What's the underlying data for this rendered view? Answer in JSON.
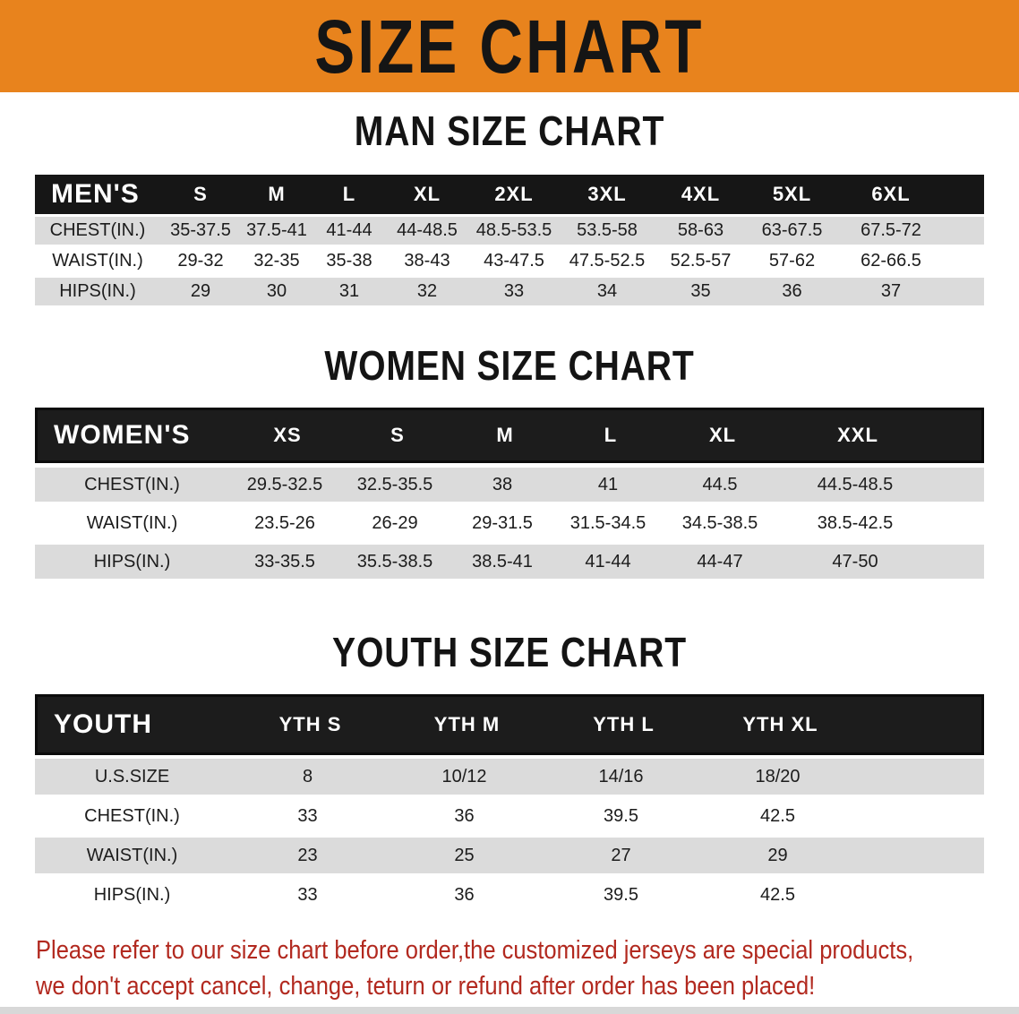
{
  "banner": {
    "title": "SIZE CHART",
    "bg_color": "#E8831D",
    "text_color": "#151515"
  },
  "colors": {
    "header_bar": "#161616",
    "row_gray": "#DBDBDB",
    "row_white": "#FFFFFF",
    "note_red": "#B2291F"
  },
  "sections": [
    {
      "id": "men",
      "title": "MAN SIZE CHART",
      "header_label": "MEN'S",
      "columns": [
        "S",
        "M",
        "L",
        "XL",
        "2XL",
        "3XL",
        "4XL",
        "5XL",
        "6XL"
      ],
      "rows": [
        {
          "label": "CHEST(IN.)",
          "shade": "gray",
          "values": [
            "35-37.5",
            "37.5-41",
            "41-44",
            "44-48.5",
            "48.5-53.5",
            "53.5-58",
            "58-63",
            "63-67.5",
            "67.5-72"
          ]
        },
        {
          "label": "WAIST(IN.)",
          "shade": "white",
          "values": [
            "29-32",
            "32-35",
            "35-38",
            "38-43",
            "43-47.5",
            "47.5-52.5",
            "52.5-57",
            "57-62",
            "62-66.5"
          ]
        },
        {
          "label": "HIPS(IN.)",
          "shade": "gray",
          "values": [
            "29",
            "30",
            "31",
            "32",
            "33",
            "34",
            "35",
            "36",
            "37"
          ]
        }
      ]
    },
    {
      "id": "women",
      "title": "WOMEN SIZE CHART",
      "header_label": "WOMEN'S",
      "columns": [
        "XS",
        "S",
        "M",
        "L",
        "XL",
        "XXL"
      ],
      "rows": [
        {
          "label": "CHEST(IN.)",
          "shade": "gray",
          "values": [
            "29.5-32.5",
            "32.5-35.5",
            "38",
            "41",
            "44.5",
            "44.5-48.5"
          ]
        },
        {
          "label": "WAIST(IN.)",
          "shade": "white",
          "values": [
            "23.5-26",
            "26-29",
            "29-31.5",
            "31.5-34.5",
            "34.5-38.5",
            "38.5-42.5"
          ]
        },
        {
          "label": "HIPS(IN.)",
          "shade": "gray",
          "values": [
            "33-35.5",
            "35.5-38.5",
            "38.5-41",
            "41-44",
            "44-47",
            "47-50"
          ]
        }
      ]
    },
    {
      "id": "youth",
      "title": "YOUTH SIZE CHART",
      "header_label": "YOUTH",
      "columns": [
        "YTH S",
        "YTH M",
        "YTH L",
        "YTH XL"
      ],
      "rows": [
        {
          "label": "U.S.SIZE",
          "shade": "gray",
          "values": [
            "8",
            "10/12",
            "14/16",
            "18/20"
          ]
        },
        {
          "label": "CHEST(IN.)",
          "shade": "white",
          "values": [
            "33",
            "36",
            "39.5",
            "42.5"
          ]
        },
        {
          "label": "WAIST(IN.)",
          "shade": "gray",
          "values": [
            "23",
            "25",
            "27",
            "29"
          ]
        },
        {
          "label": "HIPS(IN.)",
          "shade": "white",
          "values": [
            "33",
            "36",
            "39.5",
            "42.5"
          ]
        }
      ]
    }
  ],
  "footer": {
    "line1": "Please refer to our size chart before order,the customized jerseys are special products,",
    "line2": "we don't accept cancel, change, teturn or refund after order has been placed!"
  }
}
